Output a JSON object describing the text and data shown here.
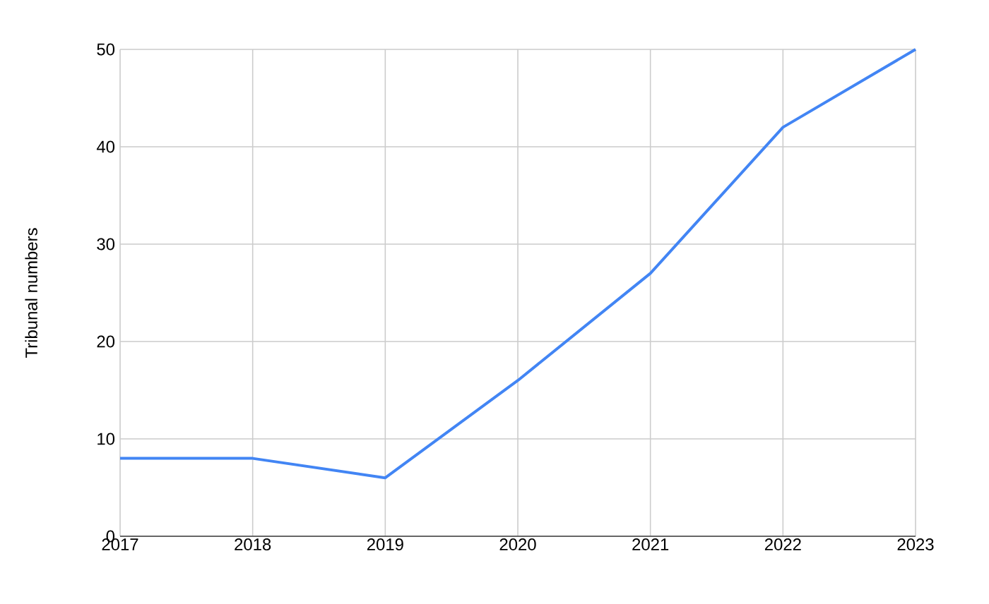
{
  "chart_data": {
    "type": "line",
    "ylabel": "Tribunal numbers",
    "x": [
      2017,
      2018,
      2019,
      2020,
      2021,
      2022,
      2023
    ],
    "series": [
      {
        "color": "#4285f4",
        "values": [
          8,
          8,
          6,
          16,
          27,
          42,
          50
        ]
      }
    ],
    "xlim": [
      2017,
      2023
    ],
    "ylim": [
      0,
      50
    ],
    "xticks": [
      2017,
      2018,
      2019,
      2020,
      2021,
      2022,
      2023
    ],
    "yticks": [
      0,
      10,
      20,
      30,
      40,
      50
    ],
    "grid": true
  }
}
